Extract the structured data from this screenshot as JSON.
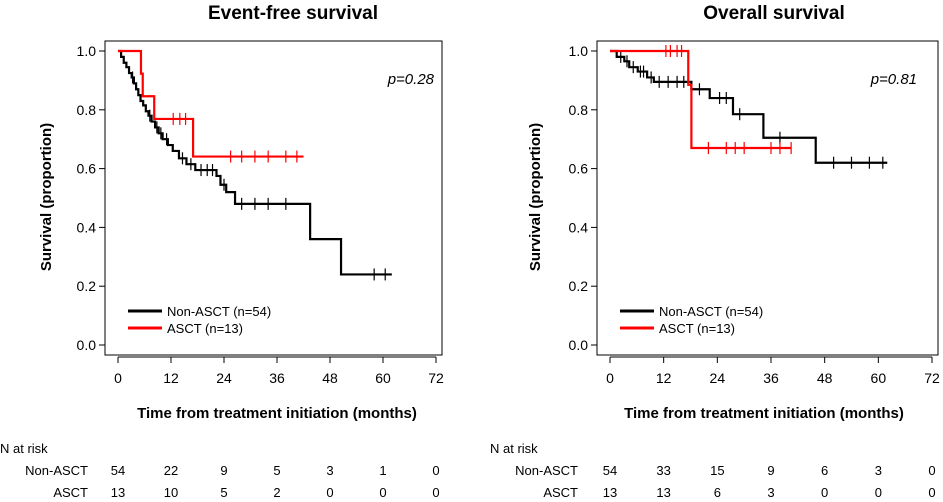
{
  "chart_data": [
    {
      "type": "line",
      "title": "Event-free survival",
      "xlabel": "Time from treatment initiation (months)",
      "ylabel": "Survival (proportion)",
      "xlim": [
        0,
        72
      ],
      "ylim": [
        0,
        1
      ],
      "x_ticks": [
        "0",
        "12",
        "24",
        "36",
        "48",
        "60",
        "72"
      ],
      "y_ticks": [
        "0.0",
        "0.2",
        "0.4",
        "0.6",
        "0.8",
        "1.0"
      ],
      "p_value": "p=0.28",
      "legend_position": "bottom-left",
      "series": [
        {
          "name": "Non-ASCT (n=54)",
          "color": "#000000",
          "steps": [
            [
              0,
              1.0
            ],
            [
              0.7,
              0.98
            ],
            [
              1.3,
              0.96
            ],
            [
              1.9,
              0.945
            ],
            [
              2.5,
              0.925
            ],
            [
              3.1,
              0.91
            ],
            [
              3.6,
              0.89
            ],
            [
              4.1,
              0.87
            ],
            [
              4.6,
              0.85
            ],
            [
              5.1,
              0.83
            ],
            [
              5.7,
              0.815
            ],
            [
              6.3,
              0.795
            ],
            [
              6.9,
              0.78
            ],
            [
              7.6,
              0.76
            ],
            [
              8.4,
              0.74
            ],
            [
              9.2,
              0.72
            ],
            [
              10.1,
              0.7
            ],
            [
              11.3,
              0.68
            ],
            [
              12.4,
              0.66
            ],
            [
              13.8,
              0.635
            ],
            [
              15.5,
              0.615
            ],
            [
              17.5,
              0.595
            ],
            [
              22.3,
              0.575
            ],
            [
              23.2,
              0.545
            ],
            [
              24.5,
              0.52
            ],
            [
              26.5,
              0.48
            ],
            [
              43.5,
              0.36
            ],
            [
              50.5,
              0.24
            ],
            [
              62,
              0.24
            ]
          ],
          "censor": [
            [
              3.3,
              0.91
            ],
            [
              7.2,
              0.78
            ],
            [
              8.8,
              0.74
            ],
            [
              9.7,
              0.72
            ],
            [
              11.0,
              0.7
            ],
            [
              14.6,
              0.635
            ],
            [
              16.5,
              0.615
            ],
            [
              18.8,
              0.595
            ],
            [
              20.2,
              0.595
            ],
            [
              21.4,
              0.595
            ],
            [
              24.0,
              0.545
            ],
            [
              28.0,
              0.48
            ],
            [
              31.0,
              0.48
            ],
            [
              34.0,
              0.48
            ],
            [
              38.0,
              0.48
            ],
            [
              58.0,
              0.24
            ],
            [
              60.5,
              0.24
            ]
          ]
        },
        {
          "name": "ASCT (n=13)",
          "color": "#ff0000",
          "steps": [
            [
              0,
              1.0
            ],
            [
              5.2,
              0.923
            ],
            [
              5.6,
              0.846
            ],
            [
              8.2,
              0.769
            ],
            [
              17.0,
              0.641
            ],
            [
              42,
              0.641
            ]
          ],
          "censor": [
            [
              12.5,
              0.769
            ],
            [
              14.0,
              0.769
            ],
            [
              15.3,
              0.769
            ],
            [
              25.5,
              0.641
            ],
            [
              28.0,
              0.641
            ],
            [
              31.0,
              0.641
            ],
            [
              34.0,
              0.641
            ],
            [
              38.0,
              0.641
            ],
            [
              40.5,
              0.641
            ]
          ]
        }
      ],
      "risk_table": {
        "header": "N at risk",
        "rows": [
          {
            "label": "Non-ASCT",
            "values": [
              "54",
              "22",
              "9",
              "5",
              "3",
              "1",
              "0"
            ]
          },
          {
            "label": "ASCT",
            "values": [
              "13",
              "10",
              "5",
              "2",
              "0",
              "0",
              "0"
            ]
          }
        ]
      }
    },
    {
      "type": "line",
      "title": "Overall survival",
      "xlabel": "Time from treatment initiation (months)",
      "ylabel": "Survival (proportion)",
      "xlim": [
        0,
        72
      ],
      "ylim": [
        0,
        1
      ],
      "x_ticks": [
        "0",
        "12",
        "24",
        "36",
        "48",
        "60",
        "72"
      ],
      "y_ticks": [
        "0.0",
        "0.2",
        "0.4",
        "0.6",
        "0.8",
        "1.0"
      ],
      "p_value": "p=0.81",
      "legend_position": "bottom-left",
      "series": [
        {
          "name": "Non-ASCT (n=54)",
          "color": "#000000",
          "steps": [
            [
              0,
              1.0
            ],
            [
              1.5,
              0.98
            ],
            [
              3.2,
              0.965
            ],
            [
              4.3,
              0.945
            ],
            [
              6.2,
              0.93
            ],
            [
              8.3,
              0.91
            ],
            [
              9.8,
              0.895
            ],
            [
              18.2,
              0.87
            ],
            [
              22.3,
              0.84
            ],
            [
              27.5,
              0.785
            ],
            [
              34.3,
              0.705
            ],
            [
              46.0,
              0.62
            ],
            [
              62,
              0.62
            ]
          ],
          "censor": [
            [
              2.4,
              0.98
            ],
            [
              3.8,
              0.965
            ],
            [
              5.2,
              0.945
            ],
            [
              6.8,
              0.93
            ],
            [
              7.5,
              0.93
            ],
            [
              9.2,
              0.91
            ],
            [
              11.0,
              0.895
            ],
            [
              13.0,
              0.895
            ],
            [
              15.0,
              0.895
            ],
            [
              16.5,
              0.895
            ],
            [
              20.0,
              0.87
            ],
            [
              24.5,
              0.84
            ],
            [
              26.0,
              0.84
            ],
            [
              29.0,
              0.785
            ],
            [
              38.0,
              0.705
            ],
            [
              50.0,
              0.62
            ],
            [
              54.0,
              0.62
            ],
            [
              58.0,
              0.62
            ],
            [
              61.0,
              0.62
            ]
          ]
        },
        {
          "name": "ASCT (n=13)",
          "color": "#ff0000",
          "steps": [
            [
              0,
              1.0
            ],
            [
              17.5,
              0.885
            ],
            [
              18.2,
              0.67
            ],
            [
              40.5,
              0.67
            ]
          ],
          "censor": [
            [
              12.5,
              1.0
            ],
            [
              13.5,
              1.0
            ],
            [
              15.0,
              1.0
            ],
            [
              16.0,
              1.0
            ],
            [
              22.0,
              0.67
            ],
            [
              26.0,
              0.67
            ],
            [
              28.0,
              0.67
            ],
            [
              30.0,
              0.67
            ],
            [
              36.0,
              0.67
            ],
            [
              38.0,
              0.67
            ],
            [
              40.5,
              0.67
            ]
          ]
        }
      ],
      "risk_table": {
        "header": "N at risk",
        "rows": [
          {
            "label": "Non-ASCT",
            "values": [
              "54",
              "33",
              "15",
              "9",
              "6",
              "3",
              "0"
            ]
          },
          {
            "label": "ASCT",
            "values": [
              "13",
              "13",
              "6",
              "3",
              "0",
              "0",
              "0"
            ]
          }
        ]
      }
    }
  ]
}
